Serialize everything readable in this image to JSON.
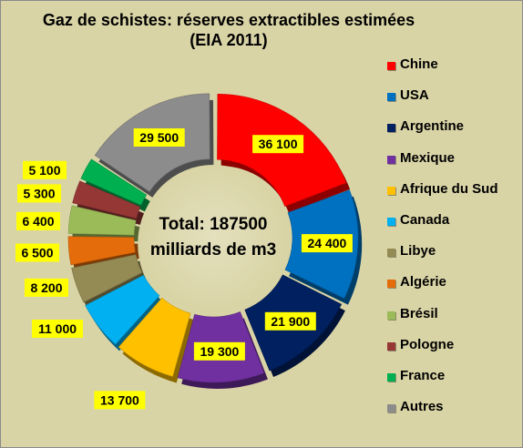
{
  "chart_data": {
    "type": "donut",
    "title_lines": [
      "Gaz de schistes: réserves  extractibles estimées",
      "(EIA 2011)"
    ],
    "center_text": [
      "Total: 187500",
      "milliards de m3"
    ],
    "series": [
      {
        "name": "Chine",
        "value": 36100,
        "label": "36 100",
        "color": "#ff0000"
      },
      {
        "name": "USA",
        "value": 24400,
        "label": "24 400",
        "color": "#0070c0"
      },
      {
        "name": "Argentine",
        "value": 21900,
        "label": "21 900",
        "color": "#002060"
      },
      {
        "name": "Mexique",
        "value": 19300,
        "label": "19 300",
        "color": "#7030a0"
      },
      {
        "name": "Afrique du Sud",
        "value": 13700,
        "label": "13 700",
        "color": "#ffc000"
      },
      {
        "name": "Canada",
        "value": 11000,
        "label": "11 000",
        "color": "#00b0f0"
      },
      {
        "name": "Libye",
        "value": 8200,
        "label": "8 200",
        "color": "#948a54"
      },
      {
        "name": "Algérie",
        "value": 6500,
        "label": "6 500",
        "color": "#e46c0a"
      },
      {
        "name": "Brésil",
        "value": 6400,
        "label": "6 400",
        "color": "#9bbb59"
      },
      {
        "name": "Pologne",
        "value": 5300,
        "label": "5 300",
        "color": "#953735"
      },
      {
        "name": "France",
        "value": 5100,
        "label": "5 100",
        "color": "#00b050"
      },
      {
        "name": "Autres",
        "value": 29500,
        "label": "29 500",
        "color": "#8c8c8c"
      }
    ],
    "legend_position": "right",
    "label_style": {
      "background": "#ffff00",
      "text_color": "#000000"
    }
  }
}
